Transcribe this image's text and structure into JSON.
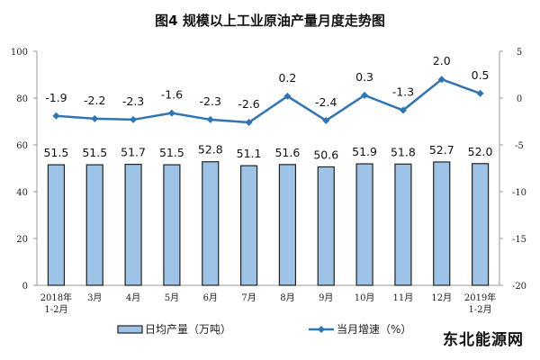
{
  "title": "图4 规模以上工业原油产量月度走势图",
  "watermark": "东北能源网",
  "chart_data": {
    "type": "bar+line",
    "title": "图4 规模以上工业原油产量月度走势图",
    "categories": [
      "2018年\n1-2月",
      "3月",
      "4月",
      "5月",
      "6月",
      "7月",
      "8月",
      "9月",
      "10月",
      "11月",
      "12月",
      "2019年\n1-2月"
    ],
    "series": [
      {
        "name": "日均产量（万吨）",
        "type": "bar",
        "axis": "left",
        "color": "#9DC3E6",
        "values": [
          51.5,
          51.5,
          51.7,
          51.5,
          52.8,
          51.1,
          51.6,
          50.6,
          51.9,
          51.8,
          52.7,
          52.0
        ]
      },
      {
        "name": "当月增速（%）",
        "type": "line",
        "axis": "right",
        "color": "#2E75B6",
        "values": [
          -1.9,
          -2.2,
          -2.3,
          -1.6,
          -2.3,
          -2.6,
          0.2,
          -2.4,
          0.3,
          -1.3,
          2.0,
          0.5
        ]
      }
    ],
    "left_axis": {
      "ylim": [
        0,
        100
      ],
      "ticks": [
        0,
        20,
        40,
        60,
        80,
        100
      ]
    },
    "right_axis": {
      "ylim": [
        -20,
        5
      ],
      "ticks": [
        -20,
        -15,
        -10,
        -5,
        0,
        5
      ]
    },
    "legend": "bottom"
  }
}
